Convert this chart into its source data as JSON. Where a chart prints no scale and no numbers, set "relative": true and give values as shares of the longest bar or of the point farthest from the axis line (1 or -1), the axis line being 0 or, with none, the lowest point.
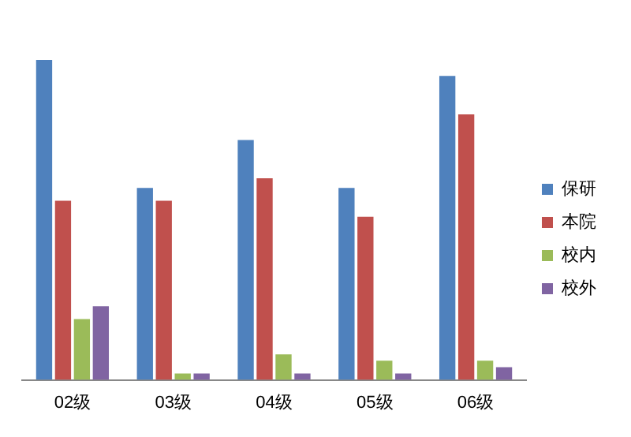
{
  "chart_data": {
    "type": "bar",
    "relative": true,
    "categories": [
      "02级",
      "03级",
      "04级",
      "05级",
      "06级"
    ],
    "series": [
      {
        "name": "保研",
        "color": "#4f81bd",
        "values": [
          1,
          0.6,
          0.75,
          0.6,
          0.95
        ]
      },
      {
        "name": "本院",
        "color": "#c0504d",
        "values": [
          0.56,
          0.56,
          0.63,
          0.51,
          0.83
        ]
      },
      {
        "name": "校内",
        "color": "#9bbb59",
        "values": [
          0.19,
          0.02,
          0.08,
          0.06,
          0.06
        ]
      },
      {
        "name": "校外",
        "color": "#8064a2",
        "values": [
          0.23,
          0.02,
          0.02,
          0.02,
          0.04
        ]
      }
    ],
    "legend": "right",
    "grid": false
  }
}
